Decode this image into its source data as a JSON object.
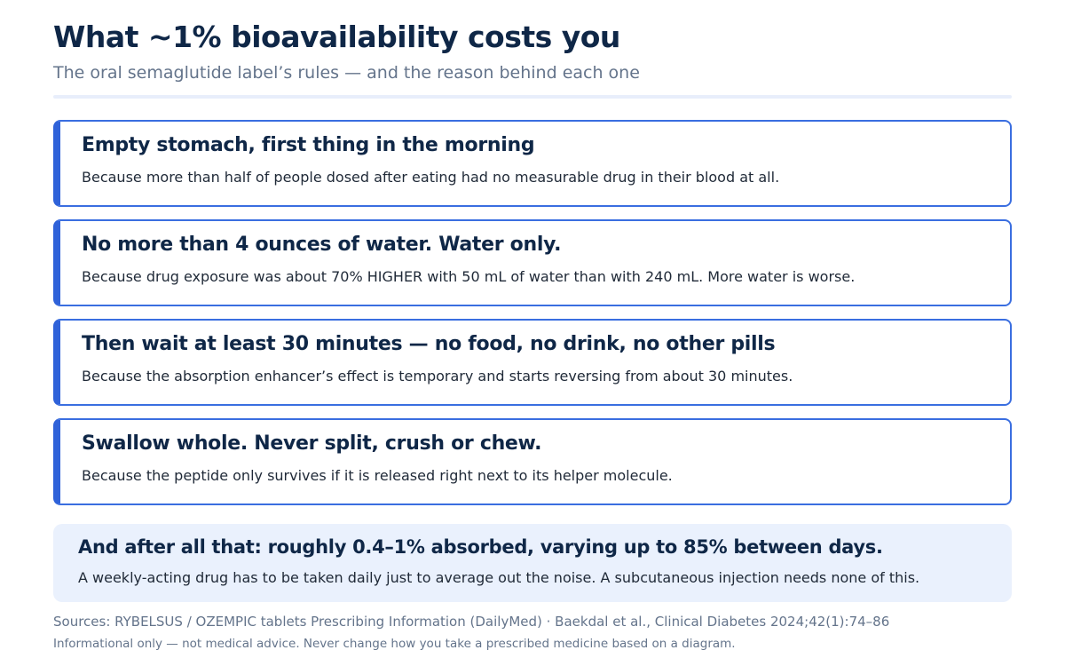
{
  "header": {
    "title": "What ~1% bioavailability costs you",
    "subtitle": "The oral semaglutide label’s rules — and the reason behind each one"
  },
  "rules": [
    {
      "title": "Empty stomach, first thing in the morning",
      "reason": "Because more than half of people dosed after eating had no measurable drug in their blood at all."
    },
    {
      "title": "No more than 4 ounces of water. Water only.",
      "reason": "Because drug exposure was about 70% HIGHER with 50 mL of water than with 240 mL. More water is worse."
    },
    {
      "title": "Then wait at least 30 minutes — no food, no drink, no other pills",
      "reason": "Because the absorption enhancer’s effect is temporary and starts reversing from about 30 minutes."
    },
    {
      "title": "Swallow whole. Never split, crush or chew.",
      "reason": "Because the peptide only survives if it is released right next to its helper molecule."
    }
  ],
  "summary": {
    "title": "And after all that: roughly 0.4–1% absorbed, varying up to 85% between days.",
    "text": "A weekly-acting drug has to be taken daily just to average out the noise. A subcutaneous injection needs none of this."
  },
  "footer": {
    "sources": "Sources: RYBELSUS / OZEMPIC tablets Prescribing Information (DailyMed) · Baekdal et al., Clinical Diabetes 2024;42(1):74–86",
    "disclaimer": "Informational only — not medical advice. Never change how you take a prescribed medicine based on a diagram."
  },
  "colors": {
    "accent": "#2f62d9",
    "heading": "#0f2747",
    "muted": "#64748b",
    "summary_bg": "#eaf1fd"
  }
}
